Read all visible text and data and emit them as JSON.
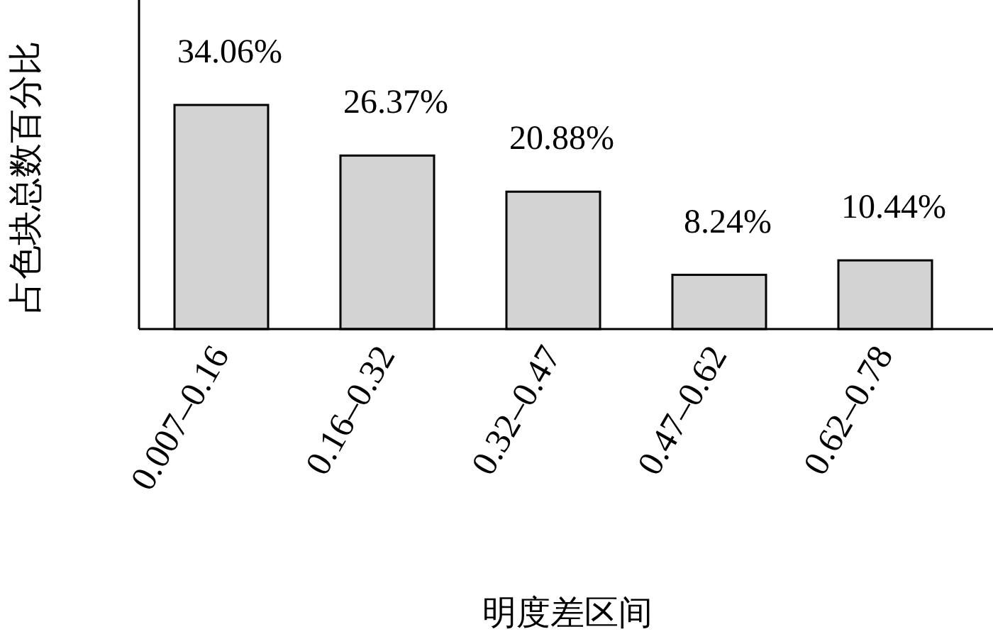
{
  "chart_data": {
    "type": "bar",
    "xlabel": "明度差区间",
    "ylabel": "占色块总数百分比",
    "categories": [
      "0.007–0.16",
      "0.16–0.32",
      "0.32–0.47",
      "0.47–0.62",
      "0.62–0.78"
    ],
    "values": [
      34.06,
      26.37,
      20.88,
      8.24,
      10.44
    ],
    "value_labels": [
      "34.06%",
      "26.37%",
      "20.88%",
      "8.24%",
      "10.44%"
    ],
    "color": "#d3d3d3"
  }
}
